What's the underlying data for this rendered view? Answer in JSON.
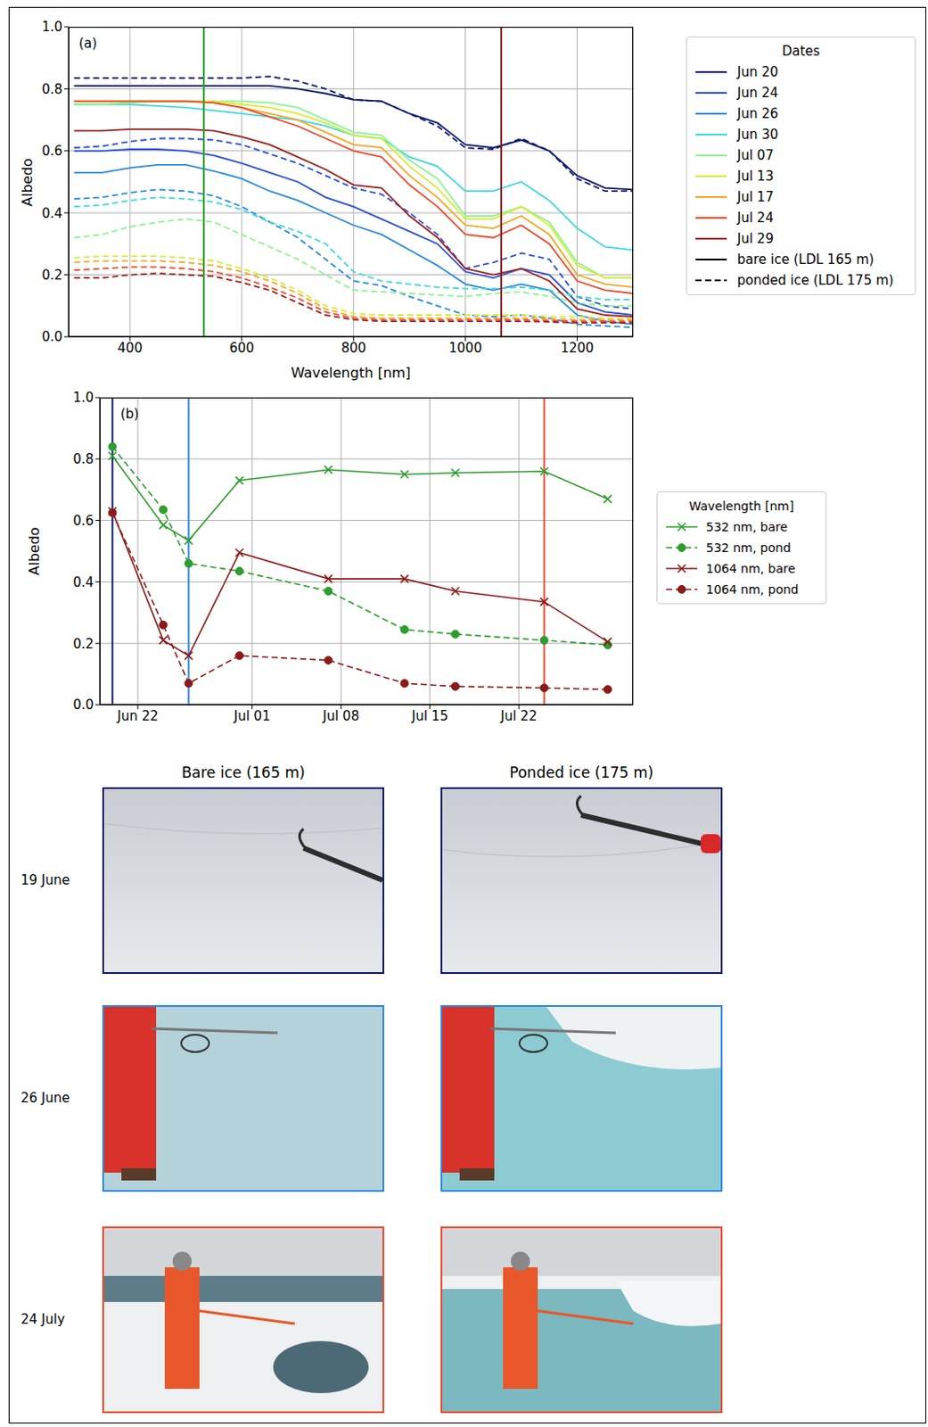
{
  "chart_data": [
    {
      "type": "line",
      "panel_label": "(a)",
      "xlabel": "Wavelength [nm]",
      "ylabel": "Albedo",
      "x": [
        300,
        350,
        400,
        450,
        500,
        550,
        600,
        650,
        700,
        750,
        800,
        850,
        900,
        950,
        1000,
        1050,
        1100,
        1150,
        1200,
        1250,
        1300
      ],
      "xlim": [
        290,
        1300
      ],
      "xticks": [
        400,
        600,
        800,
        1000,
        1200
      ],
      "ylim": [
        0,
        1
      ],
      "yticks": [
        {
          "value": 0,
          "label": "0.0"
        },
        0.2,
        0.4,
        0.6,
        0.8,
        {
          "value": 1,
          "label": "1.0"
        }
      ],
      "grid": true,
      "legend": "right",
      "legend_title": "Dates",
      "series": [
        {
          "name": "Jun 20",
          "color": "#0f1a6e",
          "line_style": "solid",
          "values": [
            0.81,
            0.81,
            0.81,
            0.81,
            0.81,
            0.81,
            0.81,
            0.81,
            0.8,
            0.785,
            0.765,
            0.76,
            0.72,
            0.69,
            0.62,
            0.61,
            0.635,
            0.6,
            0.52,
            0.48,
            0.475
          ]
        },
        {
          "name": "Jun 20",
          "color": "#0f1a6e",
          "line_style": "dashed",
          "values": [
            0.835,
            0.835,
            0.835,
            0.835,
            0.835,
            0.835,
            0.835,
            0.84,
            0.825,
            0.8,
            0.765,
            0.76,
            0.72,
            0.68,
            0.61,
            0.605,
            0.64,
            0.6,
            0.51,
            0.47,
            0.47
          ]
        },
        {
          "name": "Jun 24",
          "color": "#2a4fd6",
          "line_style": "solid",
          "values": [
            0.6,
            0.6,
            0.605,
            0.605,
            0.6,
            0.585,
            0.56,
            0.53,
            0.5,
            0.45,
            0.42,
            0.38,
            0.34,
            0.3,
            0.21,
            0.19,
            0.22,
            0.2,
            0.11,
            0.08,
            0.07
          ]
        },
        {
          "name": "Jun 24",
          "color": "#2a4fd6",
          "line_style": "dashed",
          "values": [
            0.61,
            0.615,
            0.63,
            0.64,
            0.64,
            0.635,
            0.62,
            0.59,
            0.56,
            0.52,
            0.48,
            0.46,
            0.4,
            0.33,
            0.22,
            0.24,
            0.27,
            0.25,
            0.13,
            0.1,
            0.09
          ]
        },
        {
          "name": "Jun 26",
          "color": "#2b8ae0",
          "line_style": "solid",
          "values": [
            0.53,
            0.53,
            0.545,
            0.555,
            0.555,
            0.535,
            0.51,
            0.47,
            0.44,
            0.4,
            0.36,
            0.33,
            0.28,
            0.23,
            0.17,
            0.15,
            0.17,
            0.15,
            0.07,
            0.05,
            0.04
          ]
        },
        {
          "name": "Jun 26",
          "color": "#2b8ae0",
          "line_style": "dashed",
          "values": [
            0.445,
            0.45,
            0.465,
            0.475,
            0.47,
            0.455,
            0.42,
            0.37,
            0.32,
            0.25,
            0.18,
            0.165,
            0.13,
            0.1,
            0.07,
            0.065,
            0.07,
            0.06,
            0.04,
            0.035,
            0.03
          ]
        },
        {
          "name": "Jun 30",
          "color": "#3fd9d9",
          "line_style": "solid",
          "values": [
            0.75,
            0.75,
            0.75,
            0.745,
            0.74,
            0.73,
            0.72,
            0.71,
            0.7,
            0.68,
            0.65,
            0.64,
            0.58,
            0.55,
            0.47,
            0.47,
            0.5,
            0.44,
            0.35,
            0.29,
            0.28
          ]
        },
        {
          "name": "Jun 30",
          "color": "#3fd9d9",
          "line_style": "dashed",
          "values": [
            0.42,
            0.425,
            0.44,
            0.45,
            0.445,
            0.435,
            0.41,
            0.37,
            0.34,
            0.3,
            0.21,
            0.18,
            0.17,
            0.16,
            0.155,
            0.155,
            0.16,
            0.15,
            0.13,
            0.12,
            0.12
          ]
        },
        {
          "name": "Jul 07",
          "color": "#8ef58e",
          "line_style": "solid",
          "values": [
            0.75,
            0.75,
            0.755,
            0.76,
            0.76,
            0.76,
            0.76,
            0.755,
            0.74,
            0.7,
            0.66,
            0.65,
            0.57,
            0.51,
            0.39,
            0.39,
            0.42,
            0.37,
            0.24,
            0.19,
            0.19
          ]
        },
        {
          "name": "Jul 07",
          "color": "#8ef58e",
          "line_style": "dashed",
          "values": [
            0.32,
            0.33,
            0.355,
            0.37,
            0.38,
            0.37,
            0.33,
            0.29,
            0.25,
            0.2,
            0.15,
            0.145,
            0.14,
            0.135,
            0.13,
            0.14,
            0.145,
            0.13,
            0.11,
            0.1,
            0.1
          ]
        },
        {
          "name": "Jul 13",
          "color": "#d6ec3a",
          "line_style": "solid",
          "values": [
            0.76,
            0.76,
            0.76,
            0.76,
            0.76,
            0.76,
            0.75,
            0.74,
            0.72,
            0.69,
            0.65,
            0.64,
            0.55,
            0.48,
            0.38,
            0.38,
            0.42,
            0.36,
            0.23,
            0.19,
            0.19
          ]
        },
        {
          "name": "Jul 13",
          "color": "#d6ec3a",
          "line_style": "dashed",
          "values": [
            0.255,
            0.26,
            0.26,
            0.26,
            0.255,
            0.245,
            0.22,
            0.19,
            0.15,
            0.1,
            0.075,
            0.07,
            0.07,
            0.07,
            0.07,
            0.07,
            0.07,
            0.065,
            0.065,
            0.06,
            0.06
          ]
        },
        {
          "name": "Jul 17",
          "color": "#f4a828",
          "line_style": "solid",
          "values": [
            0.76,
            0.76,
            0.76,
            0.76,
            0.76,
            0.755,
            0.74,
            0.72,
            0.7,
            0.66,
            0.62,
            0.61,
            0.52,
            0.45,
            0.36,
            0.35,
            0.39,
            0.33,
            0.2,
            0.17,
            0.16
          ]
        },
        {
          "name": "Jul 17",
          "color": "#f4a828",
          "line_style": "dashed",
          "values": [
            0.24,
            0.245,
            0.245,
            0.245,
            0.24,
            0.23,
            0.21,
            0.18,
            0.14,
            0.09,
            0.065,
            0.06,
            0.06,
            0.06,
            0.06,
            0.06,
            0.06,
            0.058,
            0.055,
            0.055,
            0.055
          ]
        },
        {
          "name": "Jul 24",
          "color": "#ee4a2c",
          "line_style": "solid",
          "values": [
            0.76,
            0.76,
            0.76,
            0.76,
            0.76,
            0.755,
            0.74,
            0.71,
            0.68,
            0.64,
            0.6,
            0.58,
            0.49,
            0.42,
            0.33,
            0.32,
            0.36,
            0.3,
            0.18,
            0.15,
            0.14
          ]
        },
        {
          "name": "Jul 24",
          "color": "#ee4a2c",
          "line_style": "dashed",
          "values": [
            0.215,
            0.22,
            0.225,
            0.225,
            0.22,
            0.21,
            0.19,
            0.16,
            0.125,
            0.08,
            0.06,
            0.055,
            0.055,
            0.055,
            0.055,
            0.055,
            0.055,
            0.052,
            0.05,
            0.05,
            0.05
          ]
        },
        {
          "name": "Jul 29",
          "color": "#9c1f1f",
          "line_style": "solid",
          "values": [
            0.665,
            0.665,
            0.67,
            0.67,
            0.67,
            0.665,
            0.645,
            0.62,
            0.58,
            0.54,
            0.49,
            0.48,
            0.39,
            0.32,
            0.22,
            0.2,
            0.22,
            0.18,
            0.09,
            0.07,
            0.065
          ]
        },
        {
          "name": "Jul 29",
          "color": "#9c1f1f",
          "line_style": "dashed",
          "values": [
            0.19,
            0.19,
            0.2,
            0.205,
            0.2,
            0.195,
            0.175,
            0.15,
            0.11,
            0.07,
            0.055,
            0.05,
            0.05,
            0.05,
            0.05,
            0.05,
            0.05,
            0.048,
            0.045,
            0.045,
            0.045
          ]
        }
      ],
      "style_legend": [
        {
          "label": "bare ice (LDL 165 m)",
          "line_style": "solid",
          "color": "#000000"
        },
        {
          "label": "ponded ice (LDL 175 m)",
          "line_style": "dashed",
          "color": "#000000"
        }
      ],
      "vlines": [
        {
          "x": 532,
          "color": "#2ca02c"
        },
        {
          "x": 1064,
          "color": "#8b1a1a"
        }
      ]
    },
    {
      "type": "line",
      "panel_label": "(b)",
      "ylabel": "Albedo",
      "x": [
        "Jun 20",
        "Jun 24",
        "Jun 26",
        "Jun 30",
        "Jul 07",
        "Jul 13",
        "Jul 17",
        "Jul 24",
        "Jul 29"
      ],
      "xlim": [
        "Jun 19",
        "Jul 31"
      ],
      "xticks": [
        "Jun 22",
        "Jul 01",
        "Jul 08",
        "Jul 15",
        "Jul 22"
      ],
      "ylim": [
        0,
        1
      ],
      "yticks": [
        {
          "value": 0,
          "label": "0.0"
        },
        0.2,
        0.4,
        0.6,
        0.8,
        {
          "value": 1,
          "label": "1.0"
        }
      ],
      "grid": true,
      "legend": "right",
      "legend_title": "Wavelength [nm]",
      "series": [
        {
          "name": "532 nm, bare",
          "color": "#2e9c2e",
          "marker": "x",
          "line_style": "solid",
          "values": [
            0.81,
            0.585,
            0.535,
            0.73,
            0.765,
            0.75,
            0.755,
            0.76,
            0.67
          ]
        },
        {
          "name": "532 nm, pond",
          "color": "#2e9c2e",
          "marker": "o",
          "line_style": "dashed",
          "values": [
            0.84,
            0.635,
            0.46,
            0.435,
            0.37,
            0.245,
            0.23,
            0.21,
            0.195
          ]
        },
        {
          "name": "1064 nm, bare",
          "color": "#8b1a1a",
          "marker": "x",
          "line_style": "solid",
          "values": [
            0.63,
            0.21,
            0.16,
            0.495,
            0.41,
            0.41,
            0.37,
            0.335,
            0.205
          ]
        },
        {
          "name": "1064 nm, pond",
          "color": "#8b1a1a",
          "marker": "o",
          "line_style": "dashed",
          "values": [
            0.625,
            0.26,
            0.07,
            0.16,
            0.145,
            0.07,
            0.06,
            0.055,
            0.05
          ]
        }
      ],
      "vlines": [
        {
          "x": "Jun 20",
          "color": "#0f1a6e"
        },
        {
          "x": "Jun 26",
          "color": "#2b8ae0"
        },
        {
          "x": "Jul 24",
          "color": "#ee4a2c"
        }
      ]
    }
  ],
  "photos": {
    "columns": [
      "Bare ice (165 m)",
      "Ponded ice (175 m)"
    ],
    "rows": [
      {
        "label": "19 June",
        "color": "#0f1a6e"
      },
      {
        "label": "26 June",
        "color": "#2b8ae0"
      },
      {
        "label": "24 July",
        "color": "#ee4a2c"
      }
    ]
  }
}
